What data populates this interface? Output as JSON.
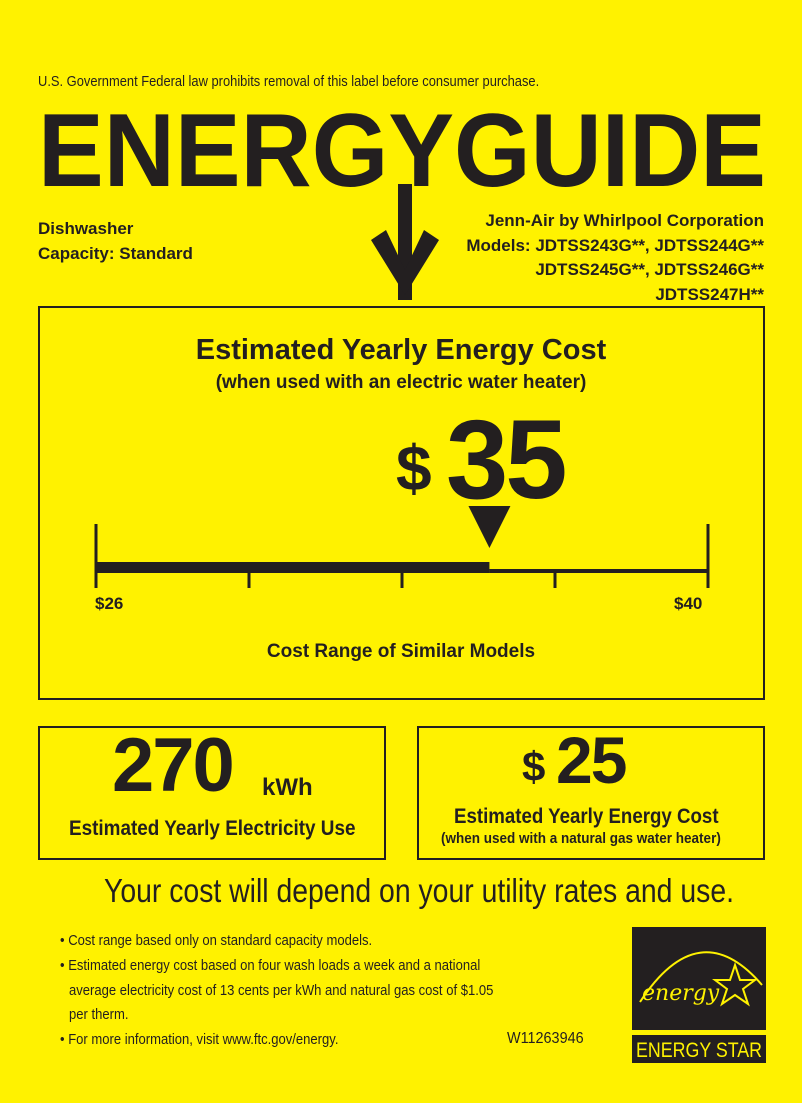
{
  "header": {
    "notice": "U.S. Government  Federal law prohibits removal of this label before consumer purchase.",
    "title": "ENERGYGUIDE",
    "product_type": "Dishwasher",
    "capacity": "Capacity: Standard",
    "manufacturer": "Jenn-Air by Whirlpool Corporation",
    "models": [
      "Models: JDTSS243G**, JDTSS244G**",
      "JDTSS245G**, JDTSS246G**",
      "JDTSS247H**"
    ]
  },
  "main_cost": {
    "title": "Estimated Yearly Energy Cost",
    "subtitle": "(when used with an electric water heater)",
    "currency": "$",
    "value": "35",
    "range_min_label": "$26",
    "range_max_label": "$40",
    "range_min": 26,
    "range_max": 40,
    "marker_value": 35,
    "range_caption": "Cost Range of Similar Models"
  },
  "electricity": {
    "value": "270",
    "unit": "kWh",
    "label": "Estimated Yearly Electricity Use"
  },
  "gas_cost": {
    "currency": "$",
    "value": "25",
    "label": "Estimated Yearly Energy Cost",
    "sublabel": "(when used with a natural gas water heater)"
  },
  "disclaimer": "Your cost will depend on your utility rates and use.",
  "bullets": [
    "Cost range based only on standard capacity models.",
    "Estimated energy cost based on four wash loads a week and a national",
    "average electricity cost of 13 cents per kWh and natural gas cost of $1.05",
    "per therm.",
    "For more information, visit www.ftc.gov/energy."
  ],
  "label_id": "W11263946",
  "energy_star": {
    "script_text": "energy",
    "caption": "ENERGY STAR"
  },
  "colors": {
    "background": "#fff200",
    "ink": "#231f20"
  }
}
